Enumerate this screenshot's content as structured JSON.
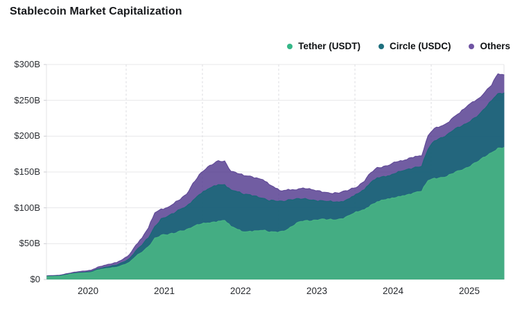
{
  "page": {
    "title": "Stablecoin Market Capitalization"
  },
  "legend": {
    "items": [
      {
        "label": "Tether (USDT)"
      },
      {
        "label": "Circle (USDC)"
      },
      {
        "label": "Others"
      }
    ]
  },
  "colors": {
    "tether_area": "#4bbb84",
    "circle_area": "#146876",
    "others_area": "#563e90",
    "tether_dot": "#35b787",
    "circle_dot": "#1e6f7e",
    "others_dot": "#6f54a3",
    "grid": "#e7e7ea",
    "grid_dashed": "#dcdce0",
    "border": "#e3e3e6",
    "tick": "#cdcdd2"
  },
  "chart_data": {
    "type": "area",
    "stacked": true,
    "title": "Stablecoin Market Capitalization",
    "xlabel": "",
    "ylabel": "",
    "units": "USD billions",
    "ylim": [
      0,
      300
    ],
    "y_ticks": [
      "$0",
      "$50B",
      "$100B",
      "$150B",
      "$200B",
      "$250B",
      "$300B"
    ],
    "x_ticks": [
      "2020",
      "2021",
      "2022",
      "2023",
      "2024",
      "2025"
    ],
    "grid": true,
    "legend_position": "top-right",
    "months": [
      "2019-12",
      "2020-01",
      "2020-02",
      "2020-03",
      "2020-04",
      "2020-05",
      "2020-06",
      "2020-07",
      "2020-08",
      "2020-09",
      "2020-10",
      "2020-11",
      "2020-12",
      "2021-01",
      "2021-02",
      "2021-03",
      "2021-04",
      "2021-05",
      "2021-06",
      "2021-07",
      "2021-08",
      "2021-09",
      "2021-10",
      "2021-11",
      "2021-12",
      "2022-01",
      "2022-02",
      "2022-03",
      "2022-04",
      "2022-05",
      "2022-06",
      "2022-07",
      "2022-08",
      "2022-09",
      "2022-10",
      "2022-11",
      "2022-12",
      "2023-01",
      "2023-02",
      "2023-03",
      "2023-04",
      "2023-05",
      "2023-06",
      "2023-07",
      "2023-08",
      "2023-09",
      "2023-10",
      "2023-11",
      "2023-12",
      "2024-01",
      "2024-02",
      "2024-03",
      "2024-04",
      "2024-05",
      "2024-06",
      "2024-07",
      "2024-08",
      "2024-09",
      "2024-10",
      "2024-11",
      "2024-12",
      "2025-01",
      "2025-02",
      "2025-03",
      "2025-04",
      "2025-05",
      "2025-06",
      "2025-07",
      "2025-08",
      "2025-09",
      "2025-10",
      "2025-11",
      "2025-12"
    ],
    "series": [
      {
        "name": "Tether (USDT)",
        "values": [
          4.1,
          4.3,
          4.6,
          6.2,
          7.8,
          8.8,
          9.2,
          10,
          13.3,
          14.8,
          15.9,
          17.2,
          20.3,
          24,
          32,
          38,
          46,
          58,
          62,
          62,
          64,
          68,
          70,
          73.5,
          76.5,
          78.5,
          80,
          81.5,
          82.5,
          74,
          70,
          66.5,
          67.5,
          68,
          68.5,
          66,
          66.5,
          67.5,
          70.5,
          76,
          81,
          82.5,
          83,
          83.8,
          83,
          83.2,
          84.5,
          87,
          91,
          94.5,
          97.5,
          104,
          108.5,
          111,
          112.5,
          114.5,
          117,
          119,
          121.5,
          123,
          138,
          141.5,
          142.5,
          143.8,
          148,
          152,
          156,
          161,
          165.5,
          171,
          177,
          183.5,
          184.5
        ]
      },
      {
        "name": "Circle (USDC)",
        "values": [
          0.5,
          0.5,
          0.6,
          0.7,
          0.7,
          0.8,
          0.9,
          1.1,
          1.4,
          1.9,
          2.4,
          2.9,
          3.9,
          5.2,
          8,
          10,
          12,
          16,
          23,
          26,
          28,
          30,
          32.5,
          37,
          42,
          45.5,
          49,
          51,
          50,
          51,
          52.5,
          52,
          51,
          48.5,
          45,
          43.5,
          43,
          42,
          41,
          36,
          31,
          29.5,
          28,
          26.5,
          26,
          25,
          23.5,
          23.5,
          24.5,
          25.5,
          28,
          31.5,
          33.5,
          33,
          32.5,
          34,
          34.5,
          35.5,
          35.5,
          35,
          43.5,
          52,
          55.5,
          58.5,
          60.5,
          60.5,
          61.5,
          63,
          64.5,
          68,
          72.5,
          76,
          76
        ]
      },
      {
        "name": "Others",
        "values": [
          0.6,
          0.7,
          0.8,
          1,
          1.2,
          1.4,
          1.7,
          2,
          2.6,
          3,
          3.2,
          3.6,
          4.2,
          5.5,
          8,
          10,
          14,
          19,
          13.5,
          12.5,
          14,
          13.5,
          16.5,
          24,
          28,
          30,
          31,
          33.5,
          33,
          26,
          25.5,
          26.5,
          26,
          25.5,
          26,
          23,
          18,
          14,
          14.5,
          13,
          15,
          14.5,
          14,
          13.5,
          12.5,
          11.5,
          12.5,
          13.5,
          12,
          10,
          11.5,
          13.5,
          14.5,
          14,
          15,
          15.5,
          14,
          15,
          15,
          14.5,
          19,
          17.5,
          16,
          16,
          18,
          20,
          23,
          24,
          23,
          23,
          21.5,
          27.5,
          25
        ]
      }
    ]
  }
}
